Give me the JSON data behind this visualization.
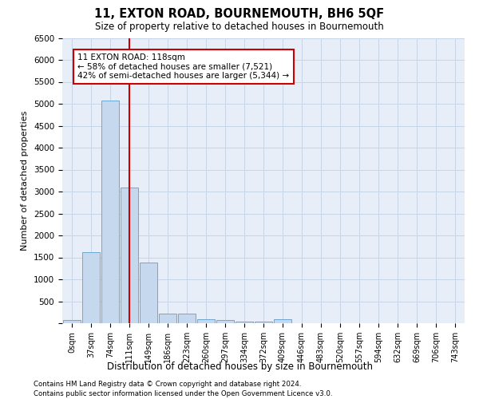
{
  "title": "11, EXTON ROAD, BOURNEMOUTH, BH6 5QF",
  "subtitle": "Size of property relative to detached houses in Bournemouth",
  "xlabel": "Distribution of detached houses by size in Bournemouth",
  "ylabel": "Number of detached properties",
  "bar_color": "#c5d8ee",
  "bar_edge_color": "#6aaad4",
  "grid_color": "#c8d4e8",
  "background_color": "#e8eef8",
  "annotation_box_color": "#cc0000",
  "vline_color": "#cc0000",
  "vline_x": 3,
  "annotation_text": "11 EXTON ROAD: 118sqm\n← 58% of detached houses are smaller (7,521)\n42% of semi-detached houses are larger (5,344) →",
  "categories": [
    "0sqm",
    "37sqm",
    "74sqm",
    "111sqm",
    "149sqm",
    "186sqm",
    "223sqm",
    "260sqm",
    "297sqm",
    "334sqm",
    "372sqm",
    "409sqm",
    "446sqm",
    "483sqm",
    "520sqm",
    "557sqm",
    "594sqm",
    "632sqm",
    "669sqm",
    "706sqm",
    "743sqm"
  ],
  "values": [
    65,
    1620,
    5080,
    3100,
    1390,
    220,
    220,
    100,
    65,
    40,
    35,
    100,
    0,
    0,
    0,
    0,
    0,
    0,
    0,
    0,
    0
  ],
  "ylim": [
    0,
    6500
  ],
  "yticks": [
    0,
    500,
    1000,
    1500,
    2000,
    2500,
    3000,
    3500,
    4000,
    4500,
    5000,
    5500,
    6000,
    6500
  ],
  "footnote1": "Contains HM Land Registry data © Crown copyright and database right 2024.",
  "footnote2": "Contains public sector information licensed under the Open Government Licence v3.0."
}
